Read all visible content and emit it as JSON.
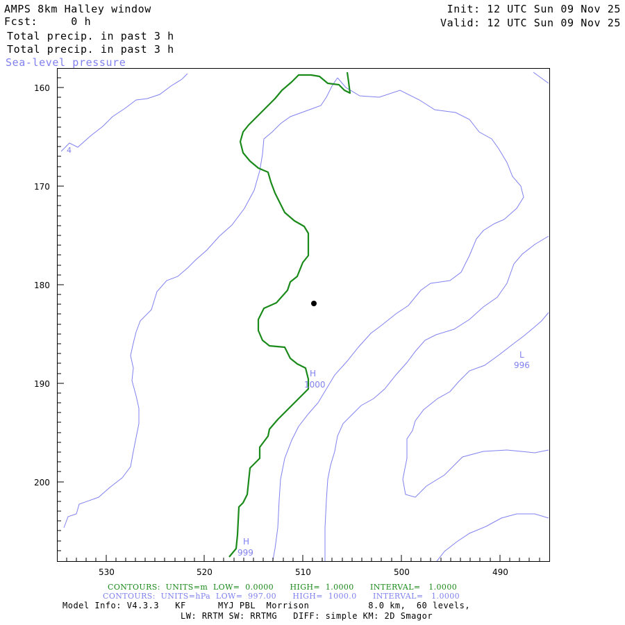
{
  "header": {
    "title": "AMPS 8km Halley window",
    "fcst": "Fcst:     0 h",
    "field_1": "Total precip. in past 3 h",
    "field_2": "Total precip. in past 3 h",
    "field_3": "Sea-level pressure",
    "init": "Init: 12 UTC Sun 09 Nov 25",
    "valid": "Valid: 12 UTC Sun 09 Nov 25"
  },
  "colors": {
    "pressure": "#8080f0",
    "precip": "#1a8a1a",
    "frame": "#000000"
  },
  "map": {
    "x_ticks": [
      "530",
      "520",
      "510",
      "500",
      "490"
    ],
    "y_ticks": [
      "160",
      "170",
      "180",
      "190",
      "200"
    ],
    "pressure_labels": [
      {
        "letter": "L",
        "value": "996"
      },
      {
        "letter": "H",
        "value": "1000"
      },
      {
        "letter": "H",
        "value": "999"
      },
      {
        "letter": "",
        "value": "4"
      }
    ],
    "station_marker": "station-dot"
  },
  "footer": {
    "contours_precip": "CONTOURS:  UNITS=m  LOW=  0.0000      HIGH=  1.0000      INTERVAL=   1.0000",
    "contours_pressure": "CONTOURS:  UNITS=hPa  LOW=  997.00      HIGH=  1000.0      INTERVAL=   1.0000",
    "model_info_1": "Model Info: V4.3.3   KF      MYJ PBL  Morrison           8.0 km,  60 levels,",
    "model_info_2": "LW: RRTM SW: RRTMG   DIFF: simple KM: 2D Smagor"
  }
}
